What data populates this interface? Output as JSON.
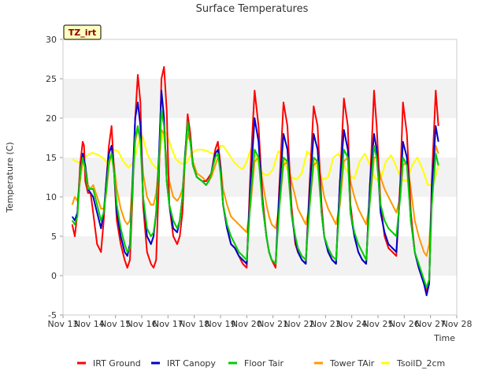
{
  "chart_data": {
    "type": "line",
    "title": "Surface Temperatures",
    "badge": "TZ_irt",
    "xlabel": "Time",
    "ylabel": "Temperature (C)",
    "xlim": [
      13,
      28
    ],
    "ylim": [
      -5,
      30
    ],
    "yticks": [
      -5,
      0,
      5,
      10,
      15,
      20,
      25,
      30
    ],
    "xticks": [
      {
        "x": 13,
        "label": "Nov 13"
      },
      {
        "x": 14,
        "label": "Nov 14"
      },
      {
        "x": 15,
        "label": "Nov 15"
      },
      {
        "x": 16,
        "label": "Nov 16"
      },
      {
        "x": 17,
        "label": "Nov 17"
      },
      {
        "x": 18,
        "label": "Nov 18"
      },
      {
        "x": 19,
        "label": "Nov 19"
      },
      {
        "x": 20,
        "label": "Nov 20"
      },
      {
        "x": 21,
        "label": "Nov 21"
      },
      {
        "x": 22,
        "label": "Nov 22"
      },
      {
        "x": 23,
        "label": "Nov 23"
      },
      {
        "x": 24,
        "label": "Nov 24"
      },
      {
        "x": 25,
        "label": "Nov 25"
      },
      {
        "x": 26,
        "label": "Nov 26"
      },
      {
        "x": 27,
        "label": "Nov 27"
      },
      {
        "x": 28,
        "label": "Nov 28"
      }
    ],
    "grid": false,
    "bands": "alternating horizontal gray bands",
    "legend_position": "bottom",
    "series": [
      {
        "name": "IRT Ground",
        "color": "#ff0000",
        "x": [
          13.35,
          13.45,
          13.55,
          13.65,
          13.75,
          13.8,
          13.85,
          13.95,
          14.05,
          14.15,
          14.3,
          14.45,
          14.55,
          14.65,
          14.75,
          14.85,
          14.95,
          15.05,
          15.2,
          15.35,
          15.45,
          15.55,
          15.65,
          15.75,
          15.85,
          15.95,
          16.05,
          16.2,
          16.35,
          16.45,
          16.55,
          16.65,
          16.75,
          16.85,
          16.95,
          17.05,
          17.2,
          17.35,
          17.45,
          17.55,
          17.65,
          17.75,
          17.85,
          17.95,
          18.1,
          18.3,
          18.45,
          18.55,
          18.65,
          18.8,
          18.9,
          19.0,
          19.1,
          19.25,
          19.4,
          19.55,
          19.7,
          19.85,
          20.0,
          20.15,
          20.3,
          20.45,
          20.6,
          20.75,
          20.85,
          20.95,
          21.1,
          21.25,
          21.4,
          21.55,
          21.7,
          21.85,
          21.95,
          22.1,
          22.25,
          22.4,
          22.55,
          22.7,
          22.85,
          22.95,
          23.1,
          23.25,
          23.4,
          23.55,
          23.7,
          23.85,
          23.95,
          24.1,
          24.25,
          24.4,
          24.55,
          24.7,
          24.85,
          24.95,
          25.1,
          25.25,
          25.4,
          25.55,
          25.7,
          25.85,
          25.95,
          26.1,
          26.25,
          26.4,
          26.55,
          26.65,
          26.75,
          26.85,
          26.95,
          27.05,
          27.2,
          27.3
        ],
        "y": [
          6.5,
          5.0,
          8.0,
          14.0,
          17.0,
          16.5,
          12.0,
          10.5,
          10.5,
          8.0,
          4.0,
          3.0,
          7.0,
          12.0,
          16.5,
          19.0,
          13.0,
          7.0,
          4.0,
          2.0,
          1.0,
          2.0,
          10.0,
          20.0,
          25.5,
          22.0,
          9.0,
          3.0,
          1.5,
          1.0,
          2.0,
          12.0,
          25.0,
          26.5,
          21.0,
          9.0,
          5.0,
          4.0,
          5.0,
          8.0,
          15.0,
          20.5,
          18.0,
          14.0,
          12.5,
          12.0,
          12.0,
          12.5,
          13.0,
          16.0,
          17.0,
          14.0,
          9.0,
          6.0,
          4.0,
          3.5,
          2.5,
          1.5,
          1.0,
          14.0,
          23.5,
          19.0,
          10.0,
          5.0,
          3.0,
          2.0,
          1.0,
          12.0,
          22.0,
          19.0,
          9.0,
          4.0,
          3.0,
          2.0,
          1.5,
          12.0,
          21.5,
          19.0,
          9.0,
          5.0,
          3.0,
          2.0,
          1.5,
          12.0,
          22.5,
          19.0,
          9.0,
          5.0,
          3.0,
          2.0,
          1.5,
          12.0,
          23.5,
          19.0,
          9.0,
          5.0,
          3.5,
          3.0,
          2.5,
          12.0,
          22.0,
          18.0,
          8.0,
          3.0,
          1.0,
          0.0,
          -1.0,
          -2.0,
          -1.0,
          12.0,
          23.5,
          19.0
        ]
      },
      {
        "name": "IRT Canopy",
        "color": "#0000cc",
        "x": [
          13.35,
          13.45,
          13.55,
          13.65,
          13.75,
          13.85,
          13.95,
          14.05,
          14.15,
          14.3,
          14.45,
          14.55,
          14.65,
          14.75,
          14.85,
          14.95,
          15.05,
          15.2,
          15.35,
          15.45,
          15.55,
          15.65,
          15.75,
          15.85,
          15.95,
          16.05,
          16.2,
          16.35,
          16.45,
          16.55,
          16.65,
          16.75,
          16.85,
          16.95,
          17.05,
          17.2,
          17.35,
          17.45,
          17.55,
          17.65,
          17.75,
          17.85,
          17.95,
          18.1,
          18.3,
          18.45,
          18.55,
          18.65,
          18.8,
          18.9,
          19.0,
          19.1,
          19.25,
          19.4,
          19.55,
          19.7,
          19.85,
          20.0,
          20.15,
          20.3,
          20.45,
          20.6,
          20.75,
          20.85,
          20.95,
          21.1,
          21.25,
          21.4,
          21.55,
          21.7,
          21.85,
          21.95,
          22.1,
          22.25,
          22.4,
          22.55,
          22.7,
          22.85,
          22.95,
          23.1,
          23.25,
          23.4,
          23.55,
          23.7,
          23.85,
          23.95,
          24.1,
          24.25,
          24.4,
          24.55,
          24.7,
          24.85,
          24.95,
          25.1,
          25.25,
          25.4,
          25.55,
          25.7,
          25.85,
          25.95,
          26.1,
          26.25,
          26.4,
          26.55,
          26.65,
          26.75,
          26.85,
          26.95,
          27.05,
          27.2,
          27.3
        ],
        "y": [
          7.5,
          7.0,
          8.0,
          13.0,
          15.5,
          14.0,
          11.0,
          10.5,
          10.0,
          8.0,
          6.0,
          8.0,
          12.0,
          15.5,
          16.5,
          13.0,
          8.0,
          5.0,
          3.0,
          2.5,
          4.0,
          12.0,
          20.0,
          22.0,
          19.0,
          10.0,
          5.0,
          4.0,
          5.0,
          8.0,
          15.0,
          23.5,
          20.0,
          12.0,
          9.0,
          6.0,
          5.5,
          7.0,
          10.0,
          15.5,
          19.5,
          17.0,
          14.0,
          12.5,
          12.0,
          11.5,
          12.0,
          13.0,
          15.5,
          16.0,
          13.5,
          9.0,
          6.0,
          4.0,
          3.5,
          2.5,
          2.0,
          1.5,
          12.0,
          20.0,
          17.0,
          9.0,
          5.0,
          3.0,
          2.0,
          1.5,
          11.0,
          18.0,
          16.0,
          8.0,
          4.5,
          3.0,
          2.0,
          1.5,
          11.0,
          18.0,
          16.0,
          8.0,
          5.0,
          3.0,
          2.0,
          1.5,
          12.0,
          18.5,
          16.0,
          8.0,
          5.0,
          3.0,
          2.0,
          1.5,
          12.0,
          18.0,
          16.0,
          8.0,
          5.5,
          4.0,
          3.5,
          3.0,
          11.0,
          17.0,
          15.0,
          7.0,
          3.0,
          1.0,
          0.0,
          -1.0,
          -2.5,
          -1.0,
          11.0,
          19.0,
          17.0
        ]
      },
      {
        "name": "Floor Tair",
        "color": "#00cc00",
        "x": [
          13.35,
          13.45,
          13.55,
          13.65,
          13.75,
          13.85,
          13.95,
          14.05,
          14.15,
          14.3,
          14.45,
          14.55,
          14.65,
          14.75,
          14.85,
          14.95,
          15.05,
          15.2,
          15.35,
          15.45,
          15.55,
          15.65,
          15.75,
          15.85,
          15.95,
          16.05,
          16.2,
          16.35,
          16.45,
          16.55,
          16.65,
          16.75,
          16.85,
          16.95,
          17.05,
          17.2,
          17.35,
          17.45,
          17.55,
          17.65,
          17.75,
          17.85,
          17.95,
          18.1,
          18.3,
          18.45,
          18.55,
          18.65,
          18.8,
          18.9,
          19.0,
          19.1,
          19.25,
          19.4,
          19.55,
          19.7,
          19.85,
          20.0,
          20.15,
          20.3,
          20.45,
          20.6,
          20.75,
          20.85,
          20.95,
          21.1,
          21.25,
          21.4,
          21.55,
          21.7,
          21.85,
          21.95,
          22.1,
          22.25,
          22.4,
          22.55,
          22.7,
          22.85,
          22.95,
          23.1,
          23.25,
          23.4,
          23.55,
          23.7,
          23.85,
          23.95,
          24.1,
          24.25,
          24.4,
          24.55,
          24.7,
          24.85,
          24.95,
          25.1,
          25.25,
          25.4,
          25.55,
          25.7,
          25.85,
          25.95,
          26.1,
          26.25,
          26.4,
          26.55,
          26.65,
          26.75,
          26.85,
          26.95,
          27.05,
          27.2,
          27.3
        ],
        "y": [
          7.0,
          6.5,
          7.5,
          13.0,
          15.0,
          13.5,
          11.0,
          11.0,
          11.0,
          9.0,
          7.0,
          8.0,
          11.0,
          14.5,
          15.5,
          13.0,
          9.0,
          6.0,
          4.0,
          3.0,
          3.5,
          11.0,
          17.5,
          19.0,
          17.0,
          10.0,
          6.0,
          5.0,
          5.5,
          8.0,
          14.0,
          21.0,
          19.0,
          12.0,
          9.0,
          7.0,
          6.0,
          7.0,
          10.0,
          15.0,
          19.5,
          17.0,
          14.0,
          12.5,
          12.0,
          11.5,
          12.0,
          13.0,
          15.0,
          15.5,
          13.0,
          9.0,
          6.5,
          5.0,
          4.0,
          3.0,
          2.5,
          2.0,
          10.0,
          16.0,
          15.0,
          9.0,
          5.0,
          3.0,
          2.0,
          1.5,
          9.0,
          15.0,
          14.5,
          8.0,
          5.0,
          3.5,
          2.5,
          2.0,
          9.0,
          15.0,
          14.5,
          8.0,
          5.0,
          3.5,
          2.5,
          2.0,
          10.0,
          16.0,
          15.0,
          8.0,
          5.5,
          4.0,
          3.0,
          2.0,
          10.0,
          16.5,
          15.0,
          9.0,
          7.0,
          6.0,
          5.5,
          5.0,
          10.0,
          15.0,
          14.0,
          7.0,
          3.0,
          1.5,
          0.5,
          -0.5,
          -1.5,
          -0.5,
          9.0,
          15.5,
          14.0
        ]
      },
      {
        "name": "Tower TAir",
        "color": "#ff9900",
        "x": [
          13.35,
          13.45,
          13.55,
          13.65,
          13.75,
          13.85,
          13.95,
          14.05,
          14.15,
          14.3,
          14.45,
          14.55,
          14.65,
          14.75,
          14.85,
          14.95,
          15.05,
          15.2,
          15.35,
          15.45,
          15.55,
          15.65,
          15.75,
          15.85,
          15.95,
          16.05,
          16.2,
          16.35,
          16.45,
          16.55,
          16.65,
          16.75,
          16.85,
          16.95,
          17.05,
          17.2,
          17.35,
          17.45,
          17.55,
          17.65,
          17.75,
          17.85,
          17.95,
          18.1,
          18.3,
          18.45,
          18.55,
          18.65,
          18.8,
          18.9,
          19.0,
          19.1,
          19.25,
          19.4,
          19.55,
          19.7,
          19.85,
          20.0,
          20.15,
          20.3,
          20.45,
          20.6,
          20.75,
          20.85,
          20.95,
          21.1,
          21.25,
          21.4,
          21.55,
          21.7,
          21.85,
          21.95,
          22.1,
          22.25,
          22.4,
          22.55,
          22.7,
          22.85,
          22.95,
          23.1,
          23.25,
          23.4,
          23.55,
          23.7,
          23.85,
          23.95,
          24.1,
          24.25,
          24.4,
          24.55,
          24.7,
          24.85,
          24.95,
          25.1,
          25.25,
          25.4,
          25.55,
          25.7,
          25.85,
          25.95,
          26.1,
          26.25,
          26.4,
          26.55,
          26.65,
          26.75,
          26.85,
          26.95,
          27.05,
          27.2,
          27.3
        ],
        "y": [
          9.0,
          10.0,
          9.5,
          12.0,
          14.5,
          14.0,
          11.5,
          11.0,
          11.5,
          10.0,
          8.5,
          8.5,
          10.5,
          14.0,
          15.5,
          14.0,
          11.0,
          8.5,
          7.0,
          6.5,
          7.0,
          12.0,
          17.0,
          18.5,
          17.5,
          13.0,
          10.0,
          9.0,
          9.0,
          10.5,
          14.0,
          18.5,
          18.0,
          14.5,
          12.0,
          10.0,
          9.5,
          10.0,
          11.0,
          14.5,
          18.0,
          17.0,
          14.5,
          13.0,
          12.5,
          12.0,
          12.0,
          12.5,
          14.0,
          15.0,
          14.0,
          11.0,
          9.0,
          7.5,
          7.0,
          6.5,
          6.0,
          5.5,
          9.0,
          14.5,
          15.0,
          12.0,
          9.0,
          7.5,
          6.5,
          6.0,
          9.0,
          14.0,
          14.5,
          12.0,
          10.0,
          8.5,
          7.5,
          6.5,
          9.0,
          14.0,
          14.5,
          12.0,
          10.0,
          8.5,
          7.5,
          6.5,
          9.0,
          14.5,
          15.0,
          12.0,
          10.0,
          8.5,
          7.5,
          6.5,
          9.5,
          15.0,
          15.0,
          12.5,
          11.0,
          10.0,
          9.0,
          8.0,
          10.0,
          14.0,
          14.5,
          11.0,
          7.0,
          5.0,
          4.0,
          3.0,
          2.5,
          4.0,
          10.0,
          16.5,
          15.5
        ]
      },
      {
        "name": "TsoilD_2cm",
        "color": "#ffff00",
        "x": [
          13.35,
          13.5,
          13.7,
          13.9,
          14.1,
          14.3,
          14.5,
          14.7,
          14.9,
          15.1,
          15.3,
          15.5,
          15.7,
          15.85,
          15.95,
          16.05,
          16.2,
          16.4,
          16.6,
          16.75,
          16.85,
          16.95,
          17.1,
          17.3,
          17.5,
          17.7,
          17.9,
          18.1,
          18.3,
          18.5,
          18.7,
          18.9,
          19.0,
          19.1,
          19.3,
          19.5,
          19.7,
          19.85,
          20.0,
          20.15,
          20.3,
          20.45,
          20.6,
          20.8,
          21.0,
          21.2,
          21.35,
          21.5,
          21.7,
          21.9,
          22.1,
          22.3,
          22.5,
          22.7,
          22.9,
          23.1,
          23.3,
          23.5,
          23.7,
          23.9,
          24.1,
          24.3,
          24.5,
          24.7,
          24.9,
          25.1,
          25.3,
          25.5,
          25.7,
          25.9,
          26.1,
          26.3,
          26.5,
          26.7,
          26.9,
          27.1,
          27.3
        ],
        "y": [
          14.8,
          14.5,
          14.3,
          15.2,
          15.6,
          15.4,
          15.0,
          14.3,
          16.0,
          15.8,
          14.5,
          13.7,
          14.5,
          16.5,
          18.0,
          17.5,
          15.5,
          14.2,
          13.5,
          17.0,
          18.5,
          18.0,
          16.5,
          14.8,
          14.2,
          14.3,
          15.5,
          16.0,
          16.0,
          15.8,
          15.5,
          15.5,
          16.5,
          16.5,
          15.5,
          14.5,
          13.8,
          13.5,
          14.5,
          16.0,
          15.5,
          14.0,
          13.0,
          12.7,
          13.5,
          15.8,
          15.5,
          13.8,
          12.5,
          12.2,
          13.0,
          15.8,
          15.0,
          13.5,
          12.2,
          12.5,
          15.0,
          15.5,
          14.0,
          12.8,
          12.3,
          14.5,
          15.5,
          14.0,
          12.3,
          12.2,
          14.5,
          15.3,
          13.8,
          12.2,
          12.0,
          14.0,
          15.0,
          13.5,
          11.5,
          11.5,
          14.0
        ]
      }
    ]
  }
}
